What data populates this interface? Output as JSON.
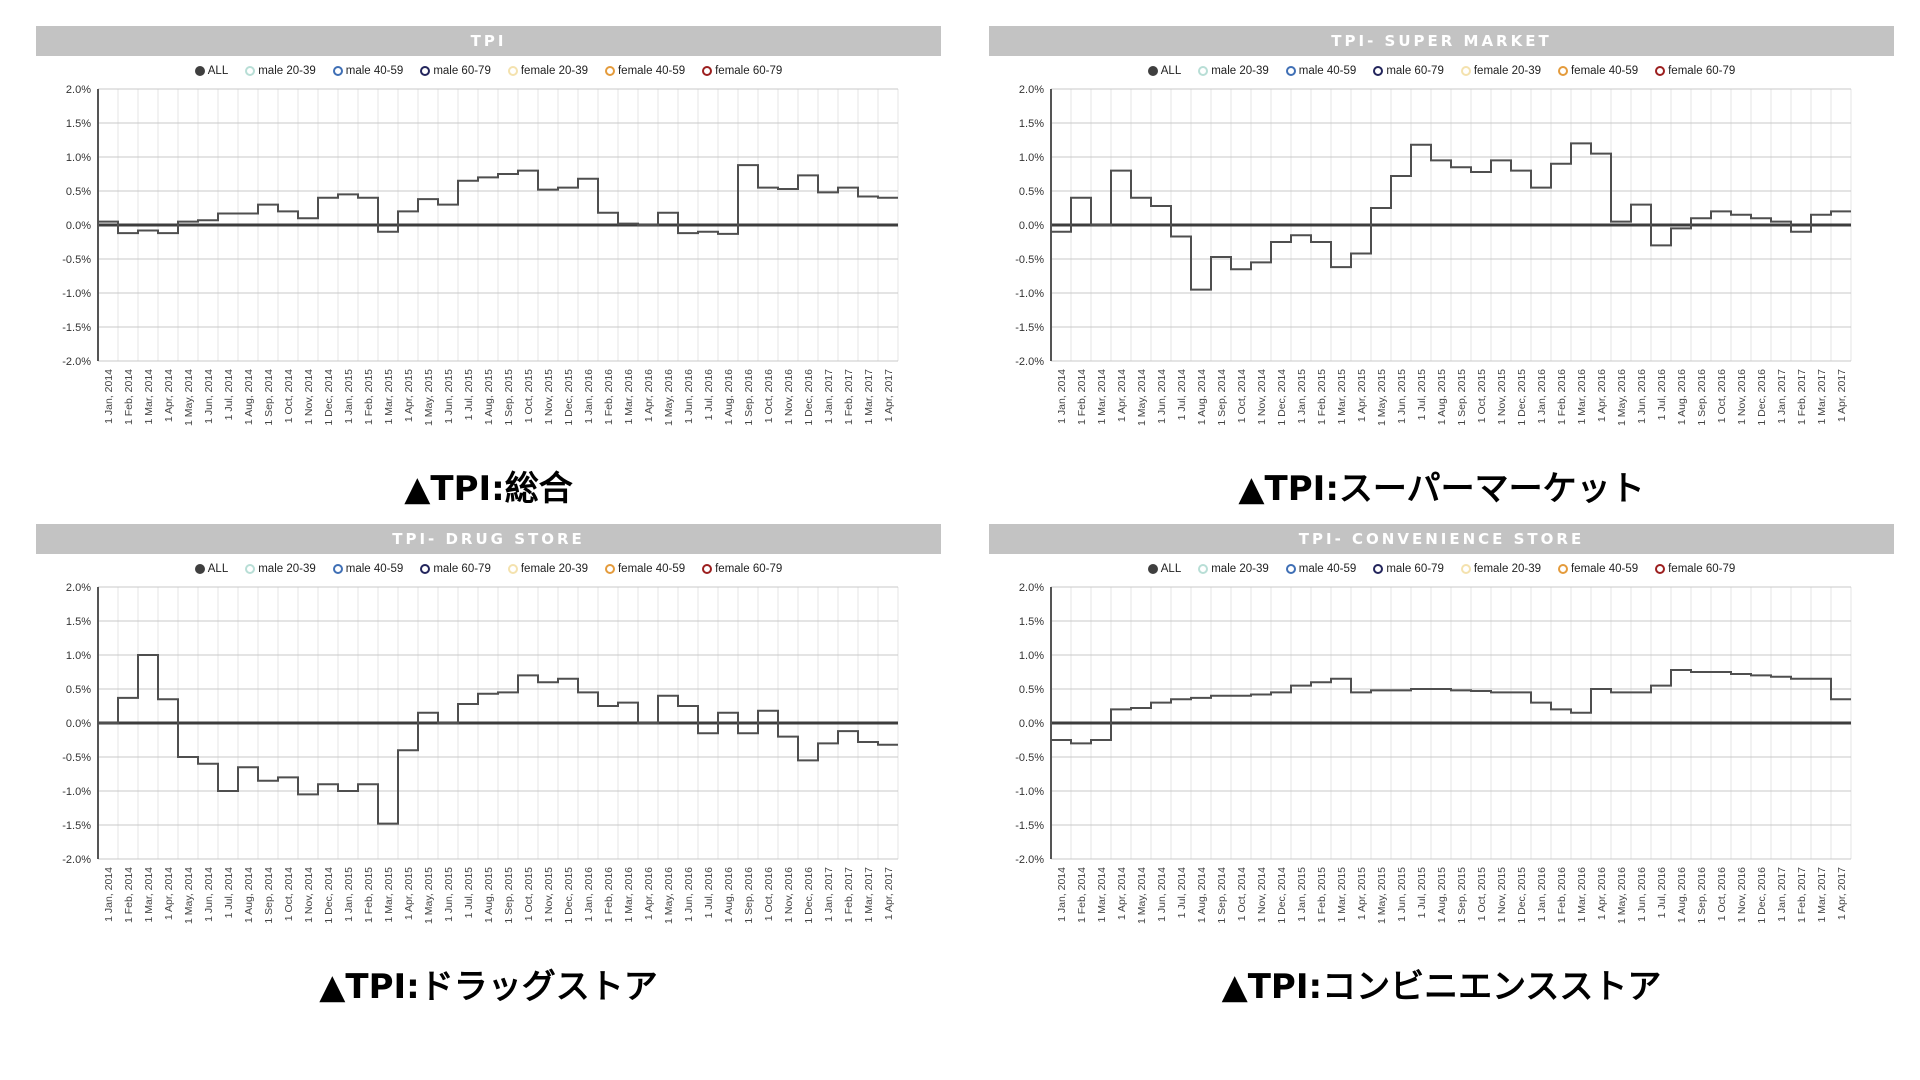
{
  "page": {
    "background": "#ffffff"
  },
  "style": {
    "header_bg": "#c3c3c3",
    "header_text": "#ffffff",
    "grid_v": "#e4e4e4",
    "grid_h": "#c9c9c9",
    "zero_line": "#3d3d3d",
    "axis_line": "#555555",
    "series_line": "#4f4f4f",
    "tick_text": "#333333",
    "caption_text": "#000000"
  },
  "axis": {
    "y_ticks": [
      "2.0%",
      "1.5%",
      "1.0%",
      "0.5%",
      "0.0%",
      "-0.5%",
      "-1.0%",
      "-1.5%",
      "-2.0%"
    ],
    "y_max": 2.0,
    "y_min": -2.0
  },
  "legend": {
    "items": [
      {
        "label": "ALL",
        "color": "#3f3f3f",
        "filled": true
      },
      {
        "label": "male 20-39",
        "color": "#b8ded6",
        "filled": false
      },
      {
        "label": "male 40-59",
        "color": "#3f6fb5",
        "filled": false
      },
      {
        "label": "male 60-79",
        "color": "#23255c",
        "filled": false
      },
      {
        "label": "female 20-39",
        "color": "#f4e2ae",
        "filled": false
      },
      {
        "label": "female 40-59",
        "color": "#e49b3c",
        "filled": false
      },
      {
        "label": "female 60-79",
        "color": "#9c1f1f",
        "filled": false
      }
    ]
  },
  "months": [
    "1 Jan, 2014",
    "1 Feb, 2014",
    "1 Mar, 2014",
    "1 Apr, 2014",
    "1 May, 2014",
    "1 Jun, 2014",
    "1 Jul, 2014",
    "1 Aug, 2014",
    "1 Sep, 2014",
    "1 Oct, 2014",
    "1 Nov, 2014",
    "1 Dec, 2014",
    "1 Jan, 2015",
    "1 Feb, 2015",
    "1 Mar, 2015",
    "1 Apr, 2015",
    "1 May, 2015",
    "1 Jun, 2015",
    "1 Jul, 2015",
    "1 Aug, 2015",
    "1 Sep, 2015",
    "1 Oct, 2015",
    "1 Nov, 2015",
    "1 Dec, 2015",
    "1 Jan, 2016",
    "1 Feb, 2016",
    "1 Mar, 2016",
    "1 Apr, 2016",
    "1 May, 2016",
    "1 Jun, 2016",
    "1 Jul, 2016",
    "1 Aug, 2016",
    "1 Sep, 2016",
    "1 Oct, 2016",
    "1 Nov, 2016",
    "1 Dec, 2016",
    "1 Jan, 2017",
    "1 Feb, 2017",
    "1 Mar, 2017",
    "1 Apr, 2017"
  ],
  "chart_data": [
    {
      "type": "line",
      "line_style": "step-after",
      "title": "TPI",
      "caption": "▲TPI:総合",
      "categories_from": "months",
      "x_range": "1 Jan, 2014 — 1 Apr, 2017",
      "ylim": [
        -2.0,
        2.0
      ],
      "y_tick_step": 0.5,
      "y_unit": "%",
      "grid": true,
      "legend_position": "top",
      "legend_entries": [
        "ALL",
        "male 20-39",
        "male 40-59",
        "male 60-79",
        "female 20-39",
        "female 40-59",
        "female 60-79"
      ],
      "series": [
        {
          "name": "ALL",
          "values": [
            0.05,
            -0.12,
            -0.08,
            -0.12,
            0.05,
            0.07,
            0.17,
            0.17,
            0.3,
            0.2,
            0.1,
            0.4,
            0.45,
            0.4,
            -0.1,
            0.2,
            0.38,
            0.3,
            0.65,
            0.7,
            0.75,
            0.8,
            0.52,
            0.55,
            0.68,
            0.18,
            0.02,
            0.0,
            0.18,
            -0.12,
            -0.1,
            -0.13,
            0.88,
            0.55,
            0.53,
            0.73,
            0.48,
            0.55,
            0.42,
            0.4
          ]
        }
      ]
    },
    {
      "type": "line",
      "line_style": "step-after",
      "title": "TPI- SUPER MARKET",
      "caption": "▲TPI:スーパーマーケット",
      "categories_from": "months",
      "x_range": "1 Jan, 2014 — 1 Apr, 2017",
      "ylim": [
        -2.0,
        2.0
      ],
      "y_tick_step": 0.5,
      "y_unit": "%",
      "grid": true,
      "legend_position": "top",
      "legend_entries": [
        "ALL",
        "male 20-39",
        "male 40-59",
        "male 60-79",
        "female 20-39",
        "female 40-59",
        "female 60-79"
      ],
      "series": [
        {
          "name": "ALL",
          "values": [
            -0.1,
            0.4,
            0.0,
            0.8,
            0.4,
            0.28,
            -0.17,
            -0.95,
            -0.47,
            -0.65,
            -0.55,
            -0.25,
            -0.15,
            -0.25,
            -0.62,
            -0.42,
            0.25,
            0.72,
            1.18,
            0.95,
            0.85,
            0.78,
            0.95,
            0.8,
            0.55,
            0.9,
            1.2,
            1.05,
            0.05,
            0.3,
            -0.3,
            -0.05,
            0.1,
            0.2,
            0.15,
            0.1,
            0.05,
            -0.1,
            0.15,
            0.2
          ]
        }
      ]
    },
    {
      "type": "line",
      "line_style": "step-after",
      "title": "TPI- DRUG STORE",
      "caption": "▲TPI:ドラッグストア",
      "categories_from": "months",
      "x_range": "1 Jan, 2014 — 1 Apr, 2017",
      "ylim": [
        -2.0,
        2.0
      ],
      "y_tick_step": 0.5,
      "y_unit": "%",
      "grid": true,
      "legend_position": "top",
      "legend_entries": [
        "ALL",
        "male 20-39",
        "male 40-59",
        "male 60-79",
        "female 20-39",
        "female 40-59",
        "female 60-79"
      ],
      "series": [
        {
          "name": "ALL",
          "values": [
            0.0,
            0.37,
            1.0,
            0.35,
            -0.5,
            -0.6,
            -1.0,
            -0.65,
            -0.85,
            -0.8,
            -1.05,
            -0.9,
            -1.0,
            -0.9,
            -1.48,
            -0.4,
            0.15,
            0.0,
            0.28,
            0.43,
            0.45,
            0.7,
            0.6,
            0.65,
            0.45,
            0.25,
            0.3,
            0.0,
            0.4,
            0.25,
            -0.15,
            0.15,
            -0.15,
            0.18,
            -0.2,
            -0.55,
            -0.3,
            -0.12,
            -0.28,
            -0.32
          ]
        }
      ]
    },
    {
      "type": "line",
      "line_style": "step-after",
      "title": "TPI- CONVENIENCE STORE",
      "caption": "▲TPI:コンビニエンスストア",
      "categories_from": "months",
      "x_range": "1 Jan, 2014 — 1 Apr, 2017",
      "ylim": [
        -2.0,
        2.0
      ],
      "y_tick_step": 0.5,
      "y_unit": "%",
      "grid": true,
      "legend_position": "top",
      "legend_entries": [
        "ALL",
        "male 20-39",
        "male 40-59",
        "male 60-79",
        "female 20-39",
        "female 40-59",
        "female 60-79"
      ],
      "series": [
        {
          "name": "ALL",
          "values": [
            -0.25,
            -0.3,
            -0.25,
            0.2,
            0.22,
            0.3,
            0.35,
            0.37,
            0.4,
            0.4,
            0.42,
            0.45,
            0.55,
            0.6,
            0.65,
            0.45,
            0.48,
            0.48,
            0.5,
            0.5,
            0.48,
            0.47,
            0.45,
            0.45,
            0.3,
            0.2,
            0.15,
            0.5,
            0.45,
            0.45,
            0.55,
            0.78,
            0.75,
            0.75,
            0.72,
            0.7,
            0.68,
            0.65,
            0.65,
            0.35
          ]
        }
      ]
    }
  ]
}
